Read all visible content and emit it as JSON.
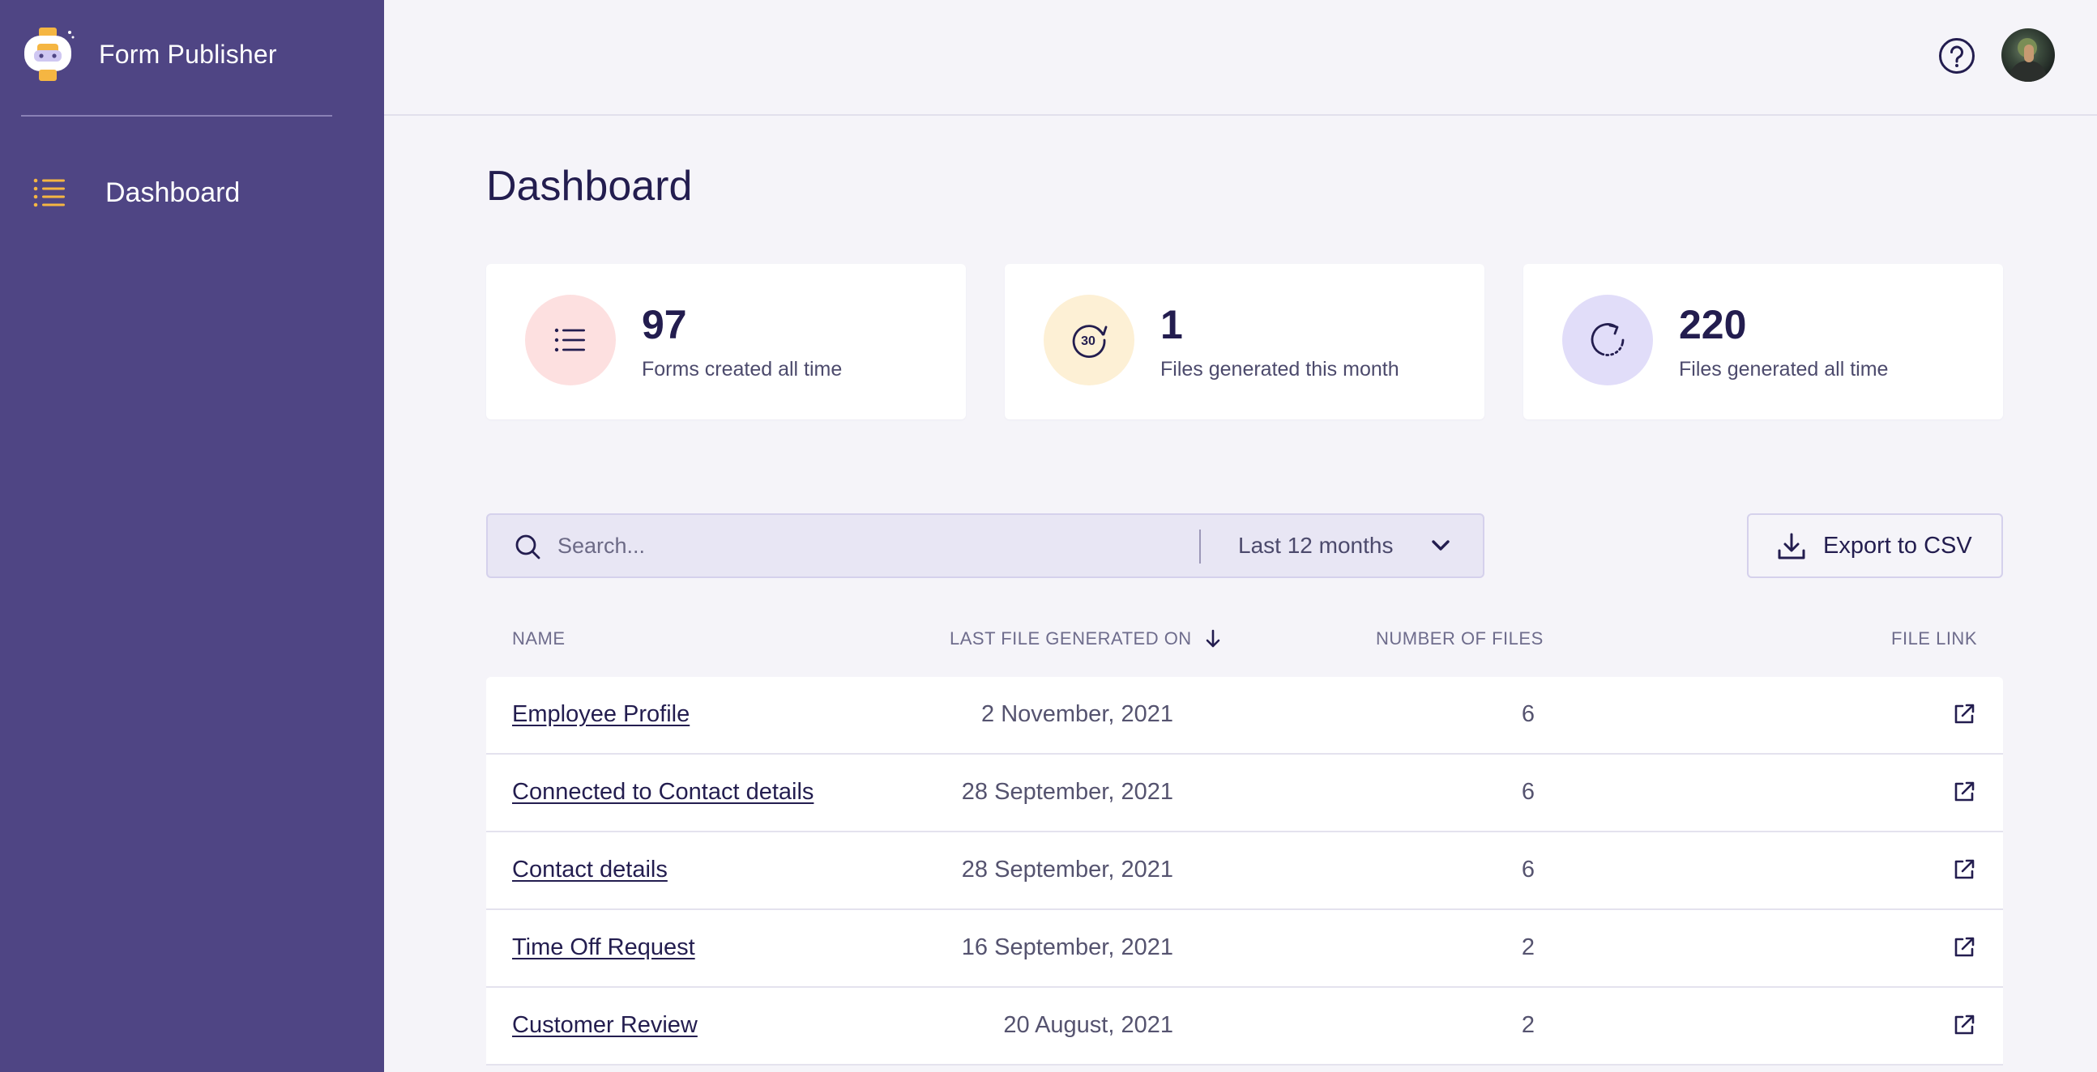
{
  "app": {
    "name": "Form Publisher",
    "logo_icon": "robot-logo-icon"
  },
  "sidebar": {
    "items": [
      {
        "label": "Dashboard",
        "icon": "list-icon",
        "active": true
      }
    ]
  },
  "topbar": {
    "help_icon": "help-circle-icon",
    "avatar_icon": "user-avatar"
  },
  "page": {
    "title": "Dashboard"
  },
  "stats": [
    {
      "value": "97",
      "label": "Forms created all time",
      "icon": "list-icon",
      "bg": "#fde0e0"
    },
    {
      "value": "1",
      "label": "Files generated this month",
      "icon": "30-days-icon",
      "icon_text": "30",
      "bg": "#fdf0d5"
    },
    {
      "value": "220",
      "label": "Files generated all time",
      "icon": "refresh-icon",
      "bg": "#e1ddf9"
    }
  ],
  "filters": {
    "search_placeholder": "Search...",
    "search_value": "",
    "period": "Last 12 months",
    "export_label": "Export to CSV"
  },
  "table": {
    "columns": {
      "name": "NAME",
      "last_generated": "LAST FILE GENERATED ON",
      "count": "NUMBER OF FILES",
      "link": "FILE LINK"
    },
    "sort_icon": "arrow-down-icon",
    "rows": [
      {
        "name": "Employee Profile",
        "date": "2 November, 2021",
        "count": "6"
      },
      {
        "name": "Connected to Contact details",
        "date": "28 September, 2021",
        "count": "6"
      },
      {
        "name": "Contact details",
        "date": "28 September, 2021",
        "count": "6"
      },
      {
        "name": "Time Off Request",
        "date": "16 September, 2021",
        "count": "2"
      },
      {
        "name": "Customer Review",
        "date": "20 August, 2021",
        "count": "2"
      }
    ]
  },
  "colors": {
    "sidebar": "#4f4584",
    "accent": "#f5b642",
    "text": "#231d4f",
    "background": "#f5f4f9"
  }
}
